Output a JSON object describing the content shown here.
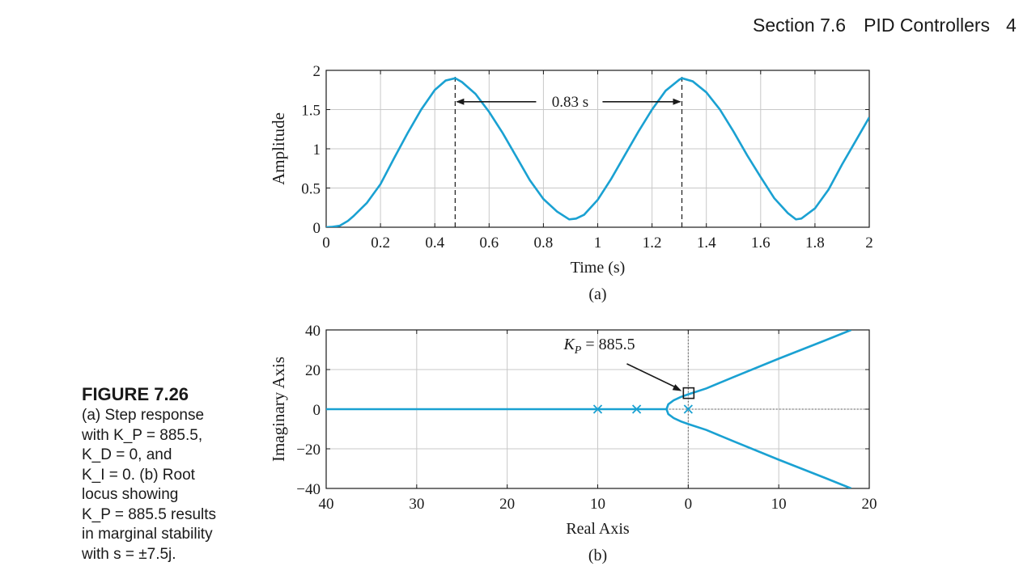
{
  "header": {
    "section": "Section 7.6",
    "title": "PID Controllers",
    "page": "4"
  },
  "caption": {
    "label": "FIGURE 7.26",
    "lines": [
      "(a) Step response",
      "with K_P = 885.5,",
      "K_D = 0, and",
      "K_I = 0. (b) Root",
      "locus showing",
      "K_P = 885.5 results",
      "in marginal stability",
      "with s = ±7.5j."
    ]
  },
  "chart_data": [
    {
      "type": "line",
      "panel_label": "(a)",
      "xlabel": "Time (s)",
      "ylabel": "Amplitude",
      "xlim": [
        0,
        2
      ],
      "ylim": [
        0,
        2
      ],
      "xticks": [
        0,
        0.2,
        0.4,
        0.6,
        0.8,
        1,
        1.2,
        1.4,
        1.6,
        1.8,
        2
      ],
      "xtick_labels": [
        "0",
        "0.2",
        "0.4",
        "0.6",
        "0.8",
        "1",
        "1.2",
        "1.4",
        "1.6",
        "1.8",
        "2"
      ],
      "yticks": [
        0,
        0.5,
        1,
        1.5,
        2
      ],
      "ytick_labels": [
        "0",
        "0.5",
        "1",
        "1.5",
        "2"
      ],
      "grid": true,
      "series": [
        {
          "color": "#1aa1d2",
          "x": [
            0,
            0.02,
            0.05,
            0.08,
            0.1,
            0.15,
            0.2,
            0.25,
            0.3,
            0.35,
            0.4,
            0.44,
            0.475,
            0.5,
            0.55,
            0.6,
            0.65,
            0.7,
            0.75,
            0.8,
            0.85,
            0.895,
            0.92,
            0.95,
            1.0,
            1.05,
            1.1,
            1.15,
            1.2,
            1.25,
            1.3,
            1.31,
            1.35,
            1.4,
            1.45,
            1.5,
            1.55,
            1.6,
            1.65,
            1.7,
            1.73,
            1.75,
            1.8,
            1.85,
            1.9,
            1.95,
            2.0
          ],
          "y": [
            0,
            0.004,
            0.02,
            0.08,
            0.14,
            0.31,
            0.55,
            0.88,
            1.2,
            1.5,
            1.75,
            1.87,
            1.9,
            1.85,
            1.7,
            1.47,
            1.2,
            0.9,
            0.6,
            0.36,
            0.2,
            0.1,
            0.11,
            0.16,
            0.35,
            0.62,
            0.92,
            1.22,
            1.5,
            1.74,
            1.88,
            1.9,
            1.86,
            1.72,
            1.5,
            1.22,
            0.92,
            0.64,
            0.37,
            0.18,
            0.1,
            0.11,
            0.24,
            0.48,
            0.8,
            1.1,
            1.4
          ]
        }
      ],
      "annotations": [
        {
          "text": "0.83 s",
          "type": "interval",
          "x_start": 0.475,
          "x_end": 1.31,
          "y": 1.6
        }
      ],
      "vlines": [
        0.475,
        1.31
      ]
    },
    {
      "type": "line",
      "panel_label": "(b)",
      "xlabel": "Real Axis",
      "ylabel": "Imaginary Axis",
      "xlim": [
        -40,
        20
      ],
      "ylim": [
        -40,
        40
      ],
      "xticks": [
        -40,
        -30,
        -20,
        -10,
        0,
        10,
        20
      ],
      "xtick_labels": [
        "40",
        "30",
        "20",
        "10",
        "0",
        "10",
        "20"
      ],
      "yticks": [
        -40,
        -20,
        0,
        20,
        40
      ],
      "ytick_labels": [
        "−40",
        "−20",
        "0",
        "20",
        "40"
      ],
      "grid": true,
      "series": [
        {
          "color": "#1aa1d2",
          "x": [
            -40,
            -2.4
          ],
          "y": [
            0,
            0
          ]
        },
        {
          "color": "#1aa1d2",
          "x": [
            -2.4,
            -2.2,
            -1.6,
            -0.8,
            0,
            2,
            5,
            10,
            15,
            18
          ],
          "y": [
            0,
            2.5,
            4.5,
            6.2,
            7.5,
            10.5,
            16.2,
            25.5,
            34.5,
            40
          ]
        },
        {
          "color": "#1aa1d2",
          "x": [
            -2.4,
            -2.2,
            -1.6,
            -0.8,
            0,
            2,
            5,
            10,
            15,
            18
          ],
          "y": [
            0,
            -2.5,
            -4.5,
            -6.2,
            -7.5,
            -10.5,
            -16.2,
            -25.5,
            -34.5,
            -40
          ]
        }
      ],
      "poles": [
        -10,
        -5.7,
        0
      ],
      "marker": {
        "x": 0,
        "y": 7.5
      },
      "annotations": [
        {
          "text": "K_P = 885.5",
          "x": -7.5,
          "y": 27,
          "arrow_to": {
            "x": 0,
            "y": 7.5
          }
        }
      ]
    }
  ]
}
